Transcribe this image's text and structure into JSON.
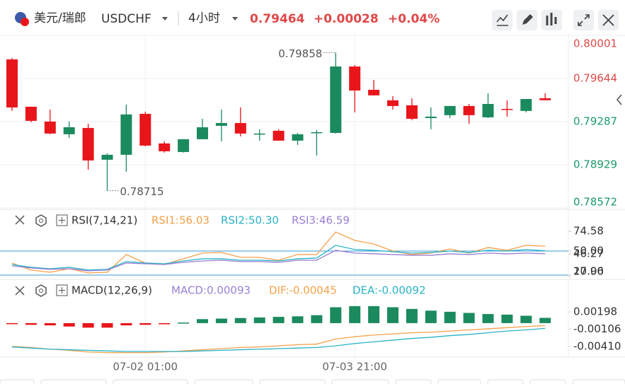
{
  "header": {
    "pair": "美元/瑞郎",
    "symbol": "USDCHF",
    "interval": "4小时",
    "price": "0.79464",
    "change": "+0.00028",
    "change_pct": "+0.04%"
  },
  "chart_data": [
    {
      "type": "candlestick",
      "categories": [
        null,
        null,
        null,
        null,
        null,
        null,
        null,
        "07-02 01:00",
        null,
        null,
        null,
        null,
        null,
        null,
        null,
        null,
        null,
        null,
        "07-03 21:00",
        null,
        null,
        null,
        null,
        null,
        null,
        null,
        null,
        null,
        null
      ],
      "open": [
        0.79802,
        0.7941,
        0.79287,
        0.79182,
        0.79234,
        0.78971,
        0.79012,
        0.79351,
        0.79106,
        0.79035,
        0.79141,
        0.79252,
        0.79275,
        0.79182,
        0.79211,
        0.79129,
        0.79193,
        0.79193,
        0.79743,
        0.7955,
        0.79463,
        0.79422,
        0.79316,
        0.7934,
        0.79416,
        0.79322,
        0.79392,
        0.79375,
        0.7948
      ],
      "high": [
        0.79814,
        0.7941,
        0.79386,
        0.79287,
        0.79269,
        0.79024,
        0.79427,
        0.79369,
        0.79123,
        0.79141,
        0.7931,
        0.79386,
        0.79404,
        0.79223,
        0.79223,
        0.79193,
        0.79217,
        0.79858,
        0.79755,
        0.79632,
        0.79498,
        0.7948,
        0.79404,
        0.79416,
        0.79433,
        0.79521,
        0.79463,
        0.79474,
        0.79521
      ],
      "low": [
        0.79375,
        0.79281,
        0.79182,
        0.79152,
        0.78889,
        0.78715,
        0.78872,
        0.79082,
        0.7903,
        0.7903,
        0.79141,
        0.79123,
        0.79164,
        0.79129,
        0.79129,
        0.79094,
        0.79006,
        0.79188,
        0.79363,
        0.79504,
        0.79386,
        0.79299,
        0.79223,
        0.79316,
        0.79269,
        0.79316,
        0.79328,
        0.79363,
        0.79463
      ],
      "close": [
        0.79404,
        0.79293,
        0.79188,
        0.7924,
        0.78965,
        0.79012,
        0.79346,
        0.79088,
        0.79041,
        0.79141,
        0.7924,
        0.79275,
        0.79188,
        0.79188,
        0.79129,
        0.79182,
        0.79199,
        0.79743,
        0.79544,
        0.79504,
        0.79416,
        0.7931,
        0.79328,
        0.79416,
        0.7934,
        0.79433,
        0.79386,
        0.79474,
        0.79464
      ],
      "up_color": "#1b8a5e",
      "down_color": "#e8151b",
      "ylim": [
        0.78572,
        0.80001
      ],
      "yticks": [
        0.80001,
        0.79644,
        0.79287,
        0.78929,
        0.78572
      ],
      "grid": true,
      "annotations": [
        {
          "label": "0.79858",
          "value": 0.79858
        },
        {
          "label": "0.78715",
          "value": 0.78715
        }
      ]
    },
    {
      "type": "line",
      "title": "RSI(7,14,21)",
      "series": [
        {
          "name": "RSI1:56.03",
          "color": "#f5a04a",
          "values": [
            35.0,
            26.2,
            23.5,
            27.9,
            22.6,
            23.5,
            45.6,
            35.0,
            33.2,
            40.3,
            47.4,
            48.2,
            42.1,
            42.1,
            38.5,
            45.6,
            45.6,
            73.8,
            63.2,
            58.8,
            50.0,
            45.6,
            47.4,
            52.6,
            47.4,
            54.4,
            50.9,
            57.1,
            56.03
          ]
        },
        {
          "name": "RSI2:50.30",
          "color": "#2ab3c6",
          "values": [
            33.2,
            29.7,
            27.9,
            29.7,
            26.2,
            27.1,
            36.8,
            35.0,
            34.1,
            37.6,
            40.3,
            40.3,
            38.5,
            38.5,
            37.6,
            40.3,
            41.2,
            57.1,
            51.8,
            50.9,
            49.1,
            47.4,
            48.2,
            50.0,
            48.2,
            50.9,
            50.0,
            51.8,
            50.3
          ]
        },
        {
          "name": "RSI3:46.59",
          "color": "#9b7fd4",
          "values": [
            31.5,
            28.8,
            27.1,
            27.9,
            25.3,
            26.2,
            35.0,
            34.1,
            33.2,
            35.9,
            37.6,
            38.5,
            36.8,
            36.8,
            35.9,
            38.5,
            38.5,
            50.9,
            47.4,
            46.5,
            45.6,
            44.7,
            44.7,
            46.5,
            45.6,
            47.4,
            46.5,
            47.4,
            46.59
          ]
        }
      ],
      "levels": [
        50,
        20
      ],
      "level_color": "#3a98d8",
      "ylim": [
        17.3,
        98.5
      ],
      "yticks": [
        74.58,
        {
          "value": 50,
          "label": "50.00"
        },
        46.27,
        17.96,
        {
          "value": 20,
          "label": "20.00"
        }
      ]
    },
    {
      "type": "macd",
      "title": "MACD(12,26,9)",
      "histogram": {
        "name": "MACD:0.00093",
        "color": "#9b7fd4",
        "up_color": "#1b8a5e",
        "down_color": "#e8151b",
        "values": [
          -0.0001,
          -0.0003,
          -0.0004,
          -0.0006,
          -0.0008,
          -0.0008,
          -0.0004,
          -0.0003,
          -0.0002,
          0.0001,
          0.0007,
          0.0008,
          0.0009,
          0.001,
          0.0011,
          0.0012,
          0.0014,
          0.0028,
          0.003,
          0.003,
          0.0028,
          0.0025,
          0.0022,
          0.002,
          0.0018,
          0.0016,
          0.0015,
          0.0013,
          0.00093
        ]
      },
      "series": [
        {
          "name": "DIF:-0.00045",
          "color": "#f5a04a",
          "values": [
            -0.0041,
            -0.0043,
            -0.0046,
            -0.0048,
            -0.0051,
            -0.0052,
            -0.0052,
            -0.0052,
            -0.0051,
            -0.0049,
            -0.0047,
            -0.0045,
            -0.0043,
            -0.0042,
            -0.004,
            -0.0038,
            -0.0037,
            -0.0028,
            -0.0024,
            -0.0021,
            -0.0019,
            -0.0017,
            -0.0016,
            -0.0014,
            -0.0012,
            -0.001,
            -0.0008,
            -0.0006,
            -0.00045
          ]
        },
        {
          "name": "DEA:-0.00092",
          "color": "#2ab3c6",
          "values": [
            -0.0042,
            -0.0044,
            -0.0046,
            -0.0047,
            -0.0048,
            -0.0049,
            -0.005,
            -0.005,
            -0.005,
            -0.005,
            -0.0049,
            -0.0048,
            -0.0047,
            -0.0046,
            -0.0045,
            -0.0044,
            -0.0043,
            -0.004,
            -0.0036,
            -0.0033,
            -0.003,
            -0.0027,
            -0.0025,
            -0.0022,
            -0.002,
            -0.0017,
            -0.0014,
            -0.0012,
            -0.00092
          ]
        }
      ],
      "ylim": [
        -0.006,
        0.0071
      ],
      "yticks": [
        0.00198,
        -0.00106,
        {
          "value": -0.0041,
          "label": "-0.00410"
        }
      ]
    }
  ]
}
